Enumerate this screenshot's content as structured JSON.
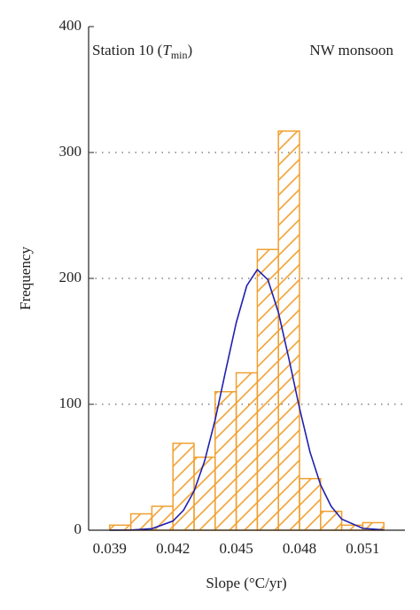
{
  "chart_data": {
    "type": "histogram",
    "annotation_left": {
      "text": "Station 10 (",
      "symbol": "T",
      "subscript": "min",
      "close": ")"
    },
    "annotation_right": "NW monsoon",
    "x_label": "Slope (°C/yr)",
    "y_label": "Frequency",
    "bins": [
      0.039,
      0.04,
      0.041,
      0.042,
      0.043,
      0.044,
      0.045,
      0.046,
      0.047,
      0.048,
      0.049,
      0.05,
      0.051,
      0.052
    ],
    "values": [
      4,
      13,
      19,
      69,
      58,
      110,
      125,
      223,
      317,
      41,
      15,
      4,
      6
    ],
    "color": "#f0a030",
    "fit": {
      "color": "#2020b0",
      "x": [
        0.039,
        0.04,
        0.041,
        0.042,
        0.0425,
        0.043,
        0.0435,
        0.044,
        0.0445,
        0.045,
        0.0455,
        0.046,
        0.0465,
        0.047,
        0.0475,
        0.048,
        0.0485,
        0.049,
        0.0495,
        0.05,
        0.051,
        0.052
      ],
      "values": [
        0,
        0.1,
        1.2,
        7.3,
        15.8,
        31,
        54.9,
        87.6,
        126.7,
        164.8,
        194.2,
        207,
        199,
        173,
        136,
        97,
        62,
        36,
        19,
        8.8,
        1.5,
        0.2
      ]
    },
    "xlim": [
      0.038,
      0.053
    ],
    "xticks": [
      0.039,
      0.042,
      0.045,
      0.048,
      0.051
    ],
    "ylim": [
      0,
      400
    ],
    "yticks": [
      0,
      100,
      200,
      300,
      400
    ],
    "grid": true
  }
}
